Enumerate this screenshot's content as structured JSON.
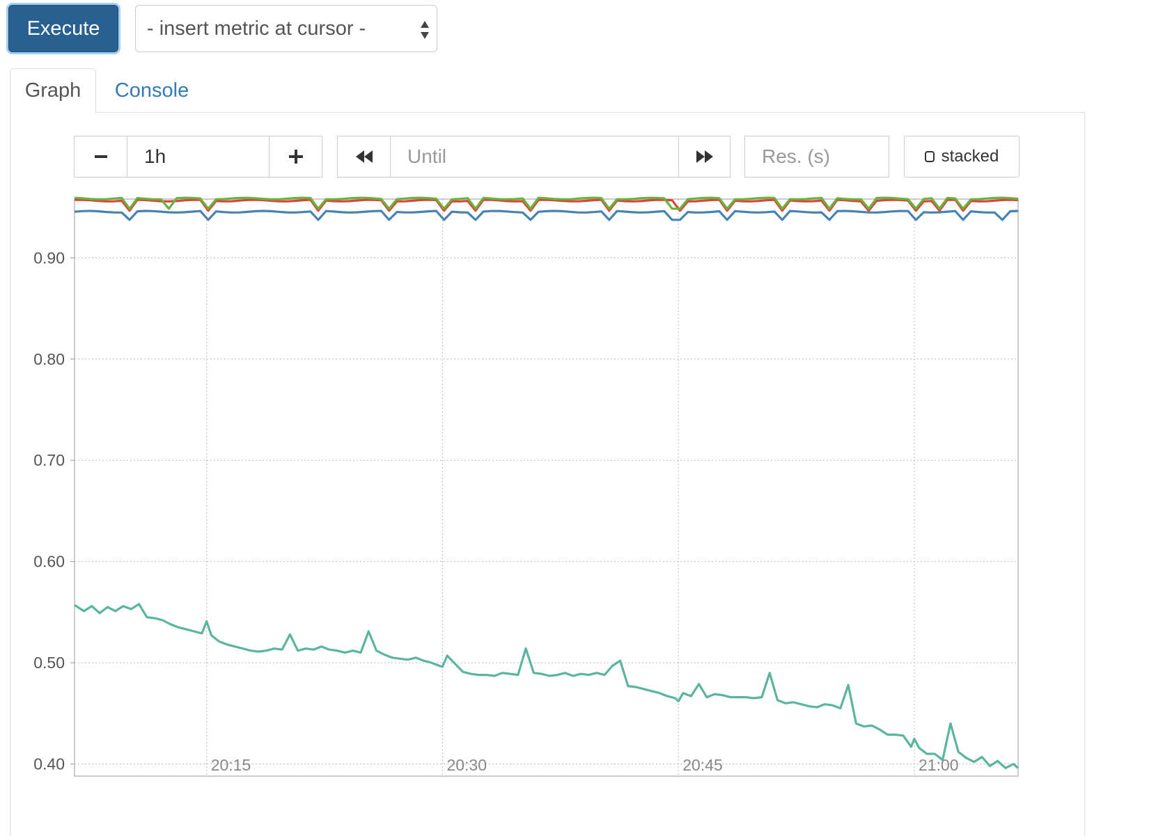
{
  "toolbar": {
    "execute_label": "Execute",
    "metric_select_value": "- insert metric at cursor -"
  },
  "tabs": [
    {
      "label": "Graph",
      "active": true
    },
    {
      "label": "Console",
      "active": false
    }
  ],
  "graph_controls": {
    "range_minus": "−",
    "range_value": "1h",
    "range_plus": "+",
    "until_placeholder": "Until",
    "res_placeholder": "Res. (s)",
    "stacked_label": "stacked"
  },
  "colors": {
    "accent": "#286090",
    "link": "#337ab7",
    "series": [
      "#1f77b4",
      "#d62728",
      "#2ca02c",
      "#5ab5a0"
    ]
  },
  "chart_data": {
    "type": "line",
    "xlabel": "",
    "ylabel": "",
    "xlim_minutes": [
      0,
      60
    ],
    "ylim": [
      0.388,
      0.958
    ],
    "y_ticks": [
      0.9,
      0.8,
      0.7,
      0.6,
      0.5,
      0.4
    ],
    "y_tick_labels": [
      "0.90",
      "0.80",
      "0.70",
      "0.60",
      "0.50",
      "0.40"
    ],
    "x_ticks": [
      {
        "t": 8.4,
        "label": "20:15"
      },
      {
        "t": 23.4,
        "label": "20:30"
      },
      {
        "t": 38.4,
        "label": "20:45"
      },
      {
        "t": 53.4,
        "label": "21:00"
      }
    ],
    "grid": true,
    "legend": "none",
    "series": [
      {
        "color": "#4682b4",
        "base": 0.9455,
        "dip_depth": 0.008,
        "dips": [
          3.6,
          8.4,
          15.6,
          20.2,
          23.4,
          25.7,
          28.8,
          33.8,
          38.0,
          38.4,
          41.7,
          45.1,
          48.2,
          53.4,
          56.3,
          58.8
        ]
      },
      {
        "color": "#d9453b",
        "base": 0.9565,
        "dip_depth": 0.01,
        "dips": [
          3.4,
          8.4,
          15.5,
          20.1,
          23.4,
          25.6,
          28.8,
          33.9,
          38.4,
          41.6,
          45.0,
          48.1,
          50.4,
          53.4,
          55.0,
          56.3
        ]
      },
      {
        "color": "#6ab23b",
        "base": 0.9585,
        "dip_depth": 0.01,
        "dips": [
          3.5,
          5.8,
          8.4,
          15.6,
          20.2,
          23.4,
          25.7,
          28.9,
          33.9,
          38.2,
          38.4,
          41.6,
          45.2,
          48.2,
          50.4,
          53.4,
          55.1,
          56.4
        ]
      },
      {
        "color": "#5ab5a0",
        "x": [
          0,
          0.6,
          1.1,
          1.6,
          2.1,
          2.6,
          3.1,
          3.6,
          4.1,
          4.6,
          5.1,
          5.6,
          6.1,
          6.6,
          7.1,
          7.6,
          8.1,
          8.4,
          8.7,
          9.2,
          9.7,
          10.2,
          10.7,
          11.2,
          11.7,
          12.2,
          12.7,
          13.2,
          13.7,
          14.2,
          14.7,
          15.2,
          15.7,
          16.2,
          16.7,
          17.2,
          17.7,
          18.2,
          18.7,
          19.2,
          19.7,
          20.2,
          20.7,
          21.2,
          21.7,
          22.2,
          22.7,
          23.2,
          23.4,
          23.7,
          24.2,
          24.7,
          25.2,
          25.7,
          26.2,
          26.7,
          27.2,
          27.7,
          28.2,
          28.7,
          29.2,
          29.7,
          30.2,
          30.7,
          31.2,
          31.7,
          32.2,
          32.7,
          33.2,
          33.7,
          34.2,
          34.7,
          35.2,
          35.7,
          36.2,
          36.7,
          37.2,
          37.7,
          38.2,
          38.4,
          38.7,
          39.2,
          39.7,
          40.2,
          40.7,
          41.2,
          41.7,
          42.2,
          42.7,
          43.2,
          43.7,
          44.2,
          44.7,
          45.2,
          45.7,
          46.2,
          46.7,
          47.2,
          47.7,
          48.2,
          48.7,
          49.2,
          49.7,
          50.2,
          50.7,
          51.2,
          51.7,
          52.2,
          52.7,
          53.2,
          53.4,
          53.7,
          54.2,
          54.7,
          55.2,
          55.7,
          56.2,
          56.7,
          57.2,
          57.7,
          58.2,
          58.7,
          59.2,
          59.7,
          60
        ],
        "y": [
          0.557,
          0.551,
          0.556,
          0.549,
          0.555,
          0.551,
          0.556,
          0.553,
          0.558,
          0.545,
          0.544,
          0.542,
          0.538,
          0.535,
          0.533,
          0.531,
          0.529,
          0.541,
          0.527,
          0.521,
          0.518,
          0.516,
          0.514,
          0.512,
          0.511,
          0.512,
          0.514,
          0.513,
          0.528,
          0.512,
          0.514,
          0.513,
          0.516,
          0.513,
          0.512,
          0.51,
          0.512,
          0.51,
          0.531,
          0.512,
          0.508,
          0.505,
          0.504,
          0.503,
          0.505,
          0.502,
          0.5,
          0.497,
          0.496,
          0.507,
          0.499,
          0.491,
          0.489,
          0.488,
          0.488,
          0.487,
          0.49,
          0.489,
          0.488,
          0.514,
          0.49,
          0.489,
          0.487,
          0.488,
          0.49,
          0.487,
          0.489,
          0.488,
          0.49,
          0.488,
          0.497,
          0.502,
          0.477,
          0.476,
          0.474,
          0.472,
          0.47,
          0.467,
          0.465,
          0.462,
          0.47,
          0.467,
          0.479,
          0.466,
          0.469,
          0.468,
          0.466,
          0.466,
          0.466,
          0.465,
          0.466,
          0.49,
          0.463,
          0.46,
          0.461,
          0.459,
          0.457,
          0.456,
          0.459,
          0.458,
          0.455,
          0.478,
          0.44,
          0.437,
          0.438,
          0.434,
          0.429,
          0.429,
          0.428,
          0.417,
          0.425,
          0.416,
          0.41,
          0.41,
          0.404,
          0.44,
          0.412,
          0.406,
          0.402,
          0.407,
          0.398,
          0.403,
          0.396,
          0.4,
          0.396
        ]
      }
    ]
  }
}
